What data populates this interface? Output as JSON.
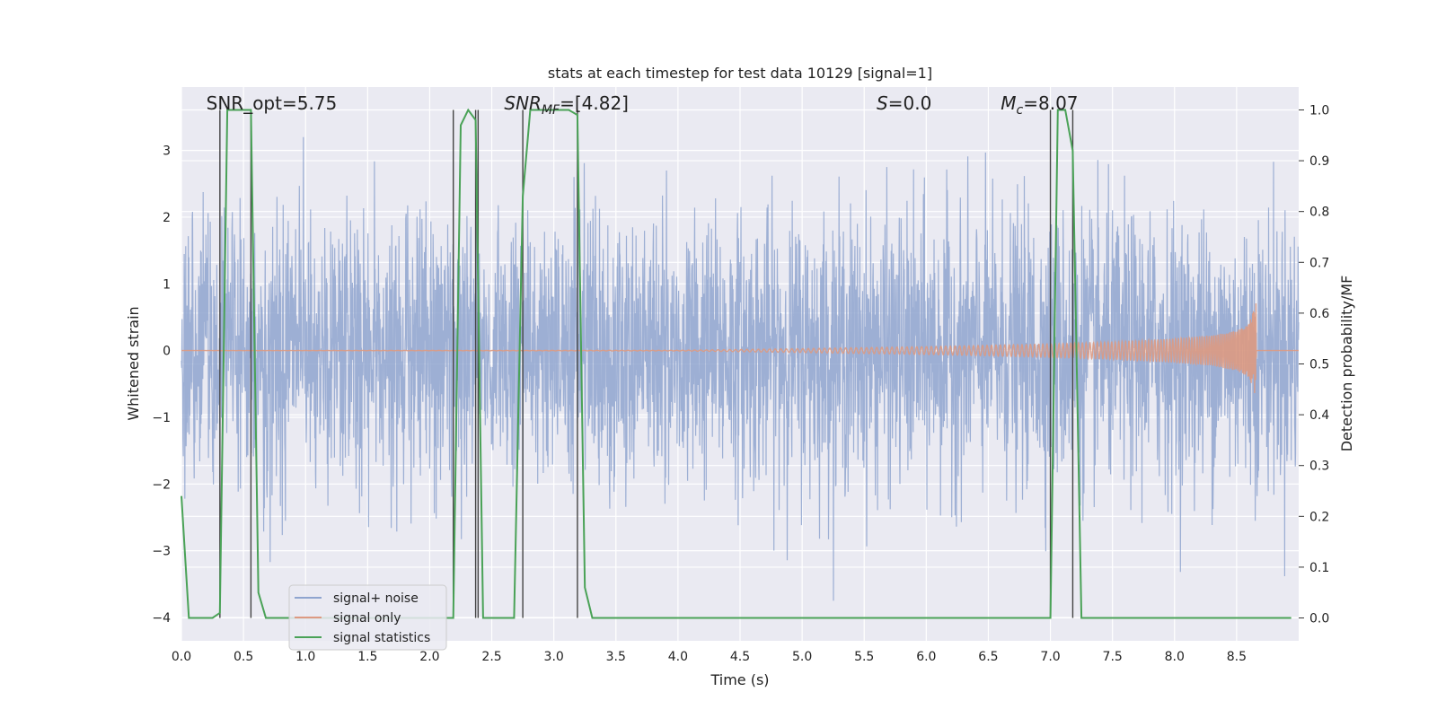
{
  "chart_data": {
    "type": "line",
    "title": "stats at each timestep for test data 10129 [signal=1]",
    "xlabel": "Time (s)",
    "ylabel_left": "Whitened strain",
    "ylabel_right": "Detection probability/MF",
    "xlim": [
      0.0,
      9.0
    ],
    "ylim_left": [
      -4.35,
      3.95
    ],
    "ylim_right": [
      -0.045,
      1.045
    ],
    "grid": true,
    "legend_position": "lower-left",
    "xticks": [
      0.0,
      0.5,
      1.0,
      1.5,
      2.0,
      2.5,
      3.0,
      3.5,
      4.0,
      4.5,
      5.0,
      5.5,
      6.0,
      6.5,
      7.0,
      7.5,
      8.0,
      8.5
    ],
    "xtick_labels": [
      "0.0",
      "0.5",
      "1.0",
      "1.5",
      "2.0",
      "2.5",
      "3.0",
      "3.5",
      "4.0",
      "4.5",
      "5.0",
      "5.5",
      "6.0",
      "6.5",
      "7.0",
      "7.5",
      "8.0",
      "8.5"
    ],
    "yticks_left": [
      -4,
      -3,
      -2,
      -1,
      0,
      1,
      2,
      3
    ],
    "ytick_labels_left": [
      "−4",
      "−3",
      "−2",
      "−1",
      "0",
      "1",
      "2",
      "3"
    ],
    "yticks_right": [
      0.0,
      0.1,
      0.2,
      0.3,
      0.4,
      0.5,
      0.6,
      0.7,
      0.8,
      0.9,
      1.0
    ],
    "ytick_labels_right": [
      "0.0",
      "0.1",
      "0.2",
      "0.3",
      "0.4",
      "0.5",
      "0.6",
      "0.7",
      "0.8",
      "0.9",
      "1.0"
    ],
    "annotations": [
      {
        "text": "SNR_opt=5.75",
        "x": 0.2
      },
      {
        "text": "SNR_MF=[4.82]",
        "x": 2.6
      },
      {
        "text": "S=0.0",
        "x": 5.6
      },
      {
        "text": "M_c=8.07",
        "x": 6.6
      }
    ],
    "vertical_markers": [
      0.31,
      0.56,
      2.19,
      2.37,
      2.39,
      2.75,
      3.19,
      7.0,
      7.18
    ],
    "series": [
      {
        "name": "signal+ noise",
        "color": "#8fa5cf",
        "description_axis": "left",
        "typical_band": [
          -1.8,
          1.8
        ],
        "extremes": [
          -3.75,
          3.55
        ]
      },
      {
        "name": "signal only",
        "color": "#dd9a82",
        "description_axis": "left",
        "envelope": {
          "x": [
            0.0,
            4.0,
            5.0,
            6.0,
            7.0,
            7.5,
            8.0,
            8.3,
            8.5,
            8.6,
            8.64,
            8.66
          ],
          "amp": [
            0.0,
            0.005,
            0.03,
            0.06,
            0.1,
            0.13,
            0.18,
            0.23,
            0.3,
            0.4,
            0.62,
            0.75
          ]
        }
      },
      {
        "name": "signal statistics",
        "color": "#4aa257",
        "description_axis": "right",
        "x": [
          0.0,
          0.06,
          0.25,
          0.31,
          0.37,
          0.56,
          0.62,
          0.68,
          2.13,
          2.19,
          2.25,
          2.31,
          2.37,
          2.43,
          2.62,
          2.68,
          2.75,
          2.81,
          3.12,
          3.19,
          3.25,
          3.31,
          6.94,
          7.0,
          7.06,
          7.12,
          7.18,
          7.25,
          8.94
        ],
        "y": [
          0.24,
          0.0,
          0.0,
          0.01,
          1.0,
          1.0,
          0.05,
          0.0,
          0.0,
          0.0,
          0.97,
          1.0,
          0.98,
          0.0,
          0.0,
          0.0,
          0.83,
          1.0,
          1.0,
          0.99,
          0.06,
          0.0,
          0.0,
          0.0,
          1.0,
          1.0,
          0.92,
          0.0,
          0.0
        ]
      }
    ]
  }
}
